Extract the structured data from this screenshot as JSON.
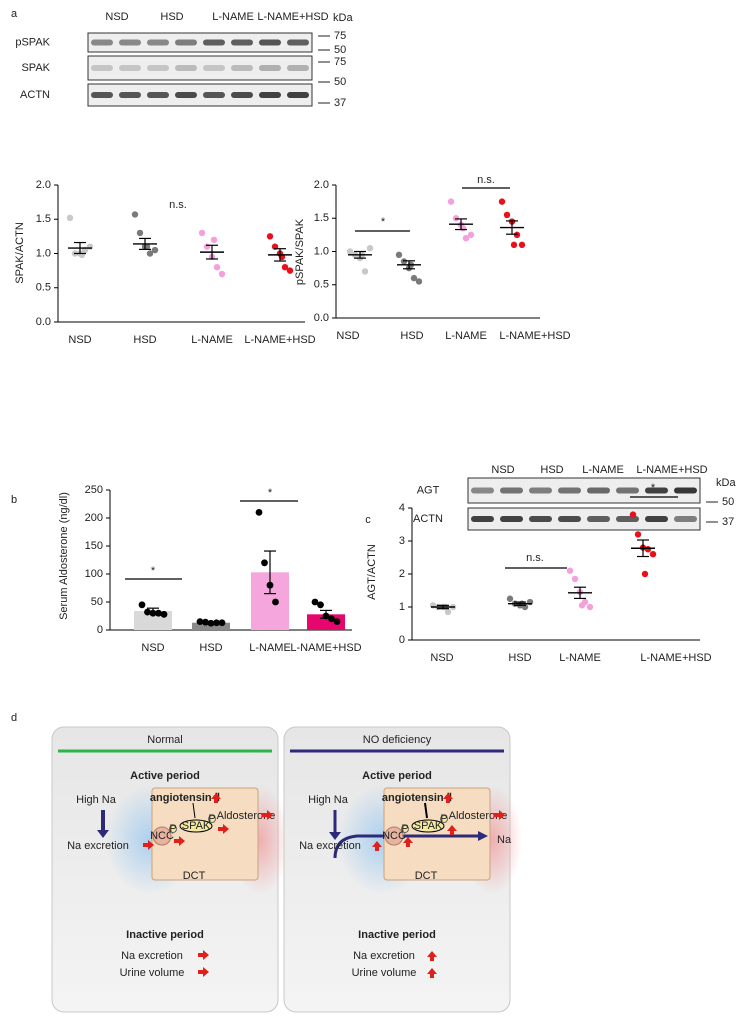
{
  "panel_labels": [
    "a",
    "b",
    "c",
    "d"
  ],
  "blots": [
    {
      "groups": [
        "NSD",
        "HSD",
        "L-NAME",
        "L-NAME+HSD"
      ],
      "rows": [
        "pSPAK",
        "SPAK",
        "ACTN"
      ],
      "kda_title": "kDa",
      "markers": [
        "75",
        "50",
        "75",
        "50",
        "37"
      ]
    },
    {
      "groups": [
        "NSD",
        "HSD",
        "L-NAME",
        "L-NAME+HSD"
      ],
      "rows": [
        "AGT",
        "ACTN"
      ],
      "kda_title": "kDa",
      "markers": [
        "50",
        "37"
      ]
    }
  ],
  "chart_data": [
    {
      "type": "dot",
      "y_label": "SPAK/ACTN",
      "categories": [
        "NSD",
        "HSD",
        "L-NAME",
        "L-NAME+HSD"
      ],
      "colors": [
        "#c8c8c8",
        "#7a7a7a",
        "#f3a0dd",
        "#e8101a"
      ],
      "points": [
        [
          1.52,
          1.0,
          1.0,
          1.05,
          1.1,
          0.98
        ],
        [
          1.57,
          1.3,
          1.1,
          1.0,
          1.05,
          1.1
        ],
        [
          1.3,
          1.1,
          0.95,
          0.8,
          0.7,
          1.2
        ],
        [
          1.25,
          1.1,
          1.0,
          0.8,
          0.75,
          0.95
        ]
      ],
      "means": [
        1.08,
        1.14,
        1.02,
        0.98
      ],
      "sems": [
        0.08,
        0.08,
        0.1,
        0.09
      ],
      "ylim": [
        0,
        2
      ],
      "yticks": [
        {
          "value": 0,
          "label": "0.0"
        },
        0.5,
        {
          "value": 1,
          "label": "1.0"
        },
        1.5,
        {
          "value": 2,
          "label": "2.0"
        }
      ],
      "annotations": [
        "n.s."
      ]
    },
    {
      "type": "dot",
      "y_label": "pSPAK/SPAK",
      "categories": [
        "NSD",
        "HSD",
        "L-NAME",
        "L-NAME+HSD"
      ],
      "colors": [
        "#c8c8c8",
        "#7a7a7a",
        "#f3a0dd",
        "#e8101a"
      ],
      "points": [
        [
          1.0,
          0.95,
          0.9,
          0.7,
          1.05,
          0.95
        ],
        [
          0.95,
          0.85,
          0.75,
          0.6,
          0.55,
          0.8
        ],
        [
          1.75,
          1.5,
          1.4,
          1.2,
          1.25,
          1.35
        ],
        [
          1.75,
          1.55,
          1.45,
          1.25,
          1.1,
          1.1
        ]
      ],
      "means": [
        0.95,
        0.8,
        1.41,
        1.36
      ],
      "sems": [
        0.05,
        0.06,
        0.08,
        0.1
      ],
      "ylim": [
        0,
        2
      ],
      "yticks": [
        {
          "value": 0,
          "label": "0.0"
        },
        0.5,
        {
          "value": 1,
          "label": "1.0"
        },
        1.5,
        {
          "value": 2,
          "label": "2.0"
        }
      ],
      "annotations": [
        "*",
        "n.s."
      ]
    },
    {
      "type": "bar",
      "y_label": "Serum Aldosterone (ng/dl)",
      "categories": [
        "NSD",
        "HSD",
        "L-NAME",
        "L-NAME+HSD"
      ],
      "colors": [
        "#d9d9d9",
        "#8a8a8a",
        "#f5a6dd",
        "#e6066d"
      ],
      "point_color": "#000000",
      "values": [
        34,
        13,
        103,
        28
      ],
      "errors": [
        5,
        2,
        38,
        7
      ],
      "points": [
        [
          45,
          32,
          30,
          30,
          28
        ],
        [
          15,
          14,
          12,
          13,
          13
        ],
        [
          210,
          120,
          80,
          50
        ],
        [
          50,
          45,
          25,
          20,
          15
        ]
      ],
      "ylim": [
        0,
        250
      ],
      "yticks": [
        0,
        50,
        100,
        150,
        200,
        250
      ],
      "annotations": [
        "*",
        "*"
      ]
    },
    {
      "type": "dot",
      "y_label": "AGT/ACTN",
      "categories": [
        "NSD",
        "HSD",
        "L-NAME",
        "L-NAME+HSD"
      ],
      "colors": [
        "#c8c8c8",
        "#7a7a7a",
        "#f3a0dd",
        "#e8101a"
      ],
      "points": [
        [
          1.05,
          1.0,
          1.0,
          0.85,
          1.0,
          1.0
        ],
        [
          1.25,
          1.1,
          1.05,
          1.0,
          1.15,
          1.1
        ],
        [
          2.1,
          1.85,
          1.45,
          1.15,
          1.0,
          1.05
        ],
        [
          3.8,
          3.2,
          2.8,
          2.75,
          2.6,
          2.0
        ]
      ],
      "means": [
        1.0,
        1.1,
        1.43,
        2.78
      ],
      "sems": [
        0.05,
        0.05,
        0.17,
        0.25
      ],
      "ylim": [
        0,
        4
      ],
      "yticks": [
        0,
        1,
        2,
        3,
        4
      ],
      "annotations": [
        "n.s.",
        "*"
      ]
    }
  ],
  "diagram": {
    "panels": [
      {
        "title": "Normal",
        "active": "Active period",
        "high_na": "High Na",
        "angiotensin": "angiotensin Ⅱ",
        "spak": "SPAK",
        "ncc": "NCC",
        "phospho": "P",
        "aldosterone": "Aldosterone",
        "dct": "DCT",
        "excretion": "Na excretion",
        "inactive": "Inactive period",
        "items": [
          "Na  excretion",
          "Urine volume"
        ]
      },
      {
        "title": "NO deficiency",
        "active": "Active period",
        "high_na": "High Na",
        "angiotensin": "angiotensin Ⅱ",
        "spak": "SPAK",
        "ncc": "NCC",
        "phospho": "P",
        "aldosterone": "Aldosterone",
        "dct": "DCT",
        "excretion": "Na excretion",
        "na": "Na",
        "inactive": "Inactive period",
        "items": [
          "Na excretion",
          "Urine volume"
        ]
      }
    ]
  }
}
